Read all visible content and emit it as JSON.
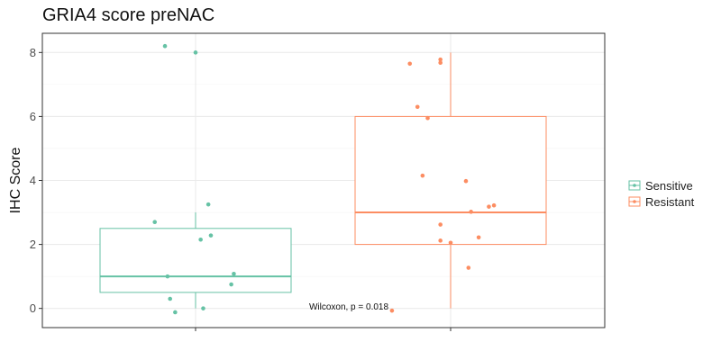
{
  "chart_data": {
    "type": "boxplot",
    "title": "GRIA4 score preNAC",
    "xlabel": "",
    "ylabel": "IHC Score",
    "ylim": [
      -0.6,
      8.6
    ],
    "yticks": [
      0,
      2,
      4,
      6,
      8
    ],
    "grid": true,
    "legend_position": "right",
    "annotation": "Wilcoxon, p = 0.018",
    "series": [
      {
        "name": "Sensitive",
        "color": "#66c2a5",
        "box": {
          "min": 0,
          "q1": 0.5,
          "median": 1.0,
          "q3": 2.5,
          "max": 3.0
        },
        "points": [
          {
            "x": 0.88,
            "y": 8.2
          },
          {
            "x": 1.0,
            "y": 8.0
          },
          {
            "x": 1.05,
            "y": 3.25
          },
          {
            "x": 0.84,
            "y": 2.7
          },
          {
            "x": 1.06,
            "y": 2.28
          },
          {
            "x": 1.02,
            "y": 2.15
          },
          {
            "x": 1.15,
            "y": 1.08
          },
          {
            "x": 0.89,
            "y": 1.0
          },
          {
            "x": 1.14,
            "y": 0.75
          },
          {
            "x": 0.9,
            "y": 0.3
          },
          {
            "x": 1.03,
            "y": 0.0
          },
          {
            "x": 0.92,
            "y": -0.12
          }
        ]
      },
      {
        "name": "Resistant",
        "color": "#fc8d62",
        "box": {
          "min": 0,
          "q1": 2.0,
          "median": 3.0,
          "q3": 6.0,
          "max": 8.0
        },
        "points": [
          {
            "x": 1.84,
            "y": 7.65
          },
          {
            "x": 1.96,
            "y": 7.78
          },
          {
            "x": 1.96,
            "y": 7.68
          },
          {
            "x": 1.87,
            "y": 6.3
          },
          {
            "x": 1.91,
            "y": 5.95
          },
          {
            "x": 1.89,
            "y": 4.15
          },
          {
            "x": 2.06,
            "y": 3.98
          },
          {
            "x": 2.17,
            "y": 3.22
          },
          {
            "x": 2.15,
            "y": 3.18
          },
          {
            "x": 2.08,
            "y": 3.02
          },
          {
            "x": 1.96,
            "y": 2.62
          },
          {
            "x": 2.11,
            "y": 2.22
          },
          {
            "x": 1.96,
            "y": 2.12
          },
          {
            "x": 2.0,
            "y": 2.05
          },
          {
            "x": 2.07,
            "y": 1.27
          },
          {
            "x": 1.77,
            "y": -0.07
          }
        ]
      }
    ]
  }
}
